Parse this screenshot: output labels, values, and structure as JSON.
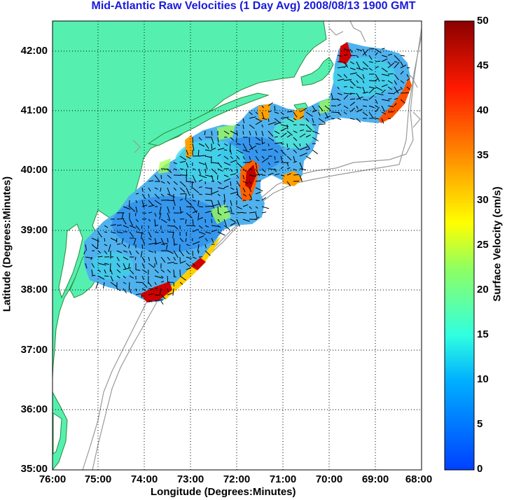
{
  "title": "Mid-Atlantic Raw Velocities (1 Day Avg) 2008/08/13 1900 GMT",
  "map": {
    "xlabel": "Longitude (Degrees:Minutes)",
    "ylabel": "Latitude (Degrees:Minutes)",
    "x_ticks": [
      "76:00",
      "75:00",
      "74:00",
      "73:00",
      "72:00",
      "71:00",
      "70:00",
      "69:00",
      "68:00"
    ],
    "y_ticks": [
      "42:00",
      "41:00",
      "40:00",
      "39:00",
      "38:00",
      "37:00",
      "36:00",
      "35:00"
    ],
    "colors": {
      "land": "#55f0b0",
      "coast_line": "#2a8a3a",
      "isobath": "#999999",
      "arrow": "#000000"
    }
  },
  "colorbar": {
    "label": "Surface Velocity (cm/s)",
    "ticks": [
      "50",
      "45",
      "40",
      "35",
      "30",
      "25",
      "20",
      "15",
      "10",
      "5",
      "0"
    ],
    "colormap": "jet"
  }
}
